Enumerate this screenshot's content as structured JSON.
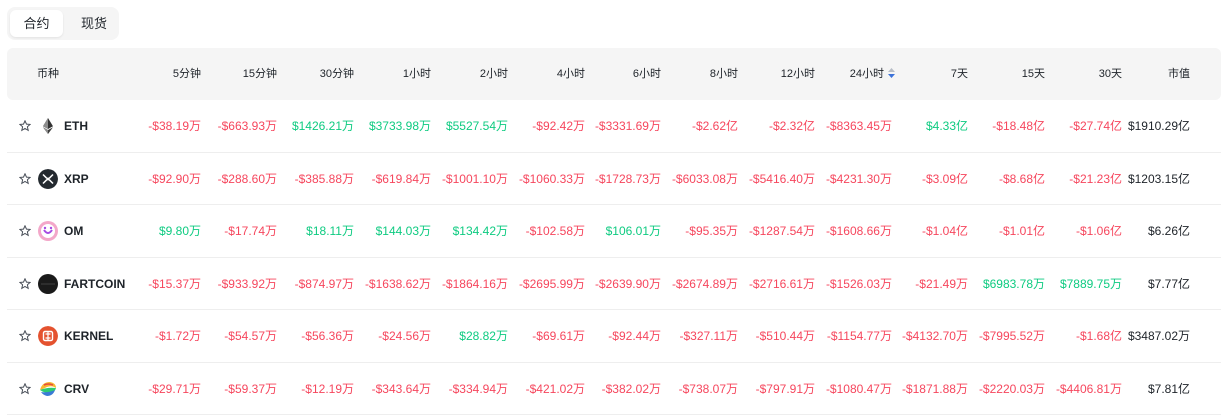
{
  "tabs": [
    {
      "label": "合约",
      "active": true
    },
    {
      "label": "现货",
      "active": false
    }
  ],
  "colors": {
    "positive": "#0ecb81",
    "negative": "#f6465d",
    "sort_active": "#3c72d9"
  },
  "headers": [
    "币种",
    "5分钟",
    "15分钟",
    "30分钟",
    "1小时",
    "2小时",
    "4小时",
    "6小时",
    "8小时",
    "12小时",
    "24小时",
    "7天",
    "15天",
    "30天",
    "市值"
  ],
  "sorted_column": "24小时",
  "rows": [
    {
      "symbol": "ETH",
      "icon": "eth-icon",
      "values": [
        "-$38.19万",
        "-$663.93万",
        "$1426.21万",
        "$3733.98万",
        "$5527.54万",
        "-$92.42万",
        "-$3331.69万",
        "-$2.62亿",
        "-$2.32亿",
        "-$8363.45万",
        "$4.33亿",
        "-$18.48亿",
        "-$27.74亿"
      ],
      "market_cap": "$1910.29亿"
    },
    {
      "symbol": "XRP",
      "icon": "xrp-icon",
      "values": [
        "-$92.90万",
        "-$288.60万",
        "-$385.88万",
        "-$619.84万",
        "-$1001.10万",
        "-$1060.33万",
        "-$1728.73万",
        "-$6033.08万",
        "-$5416.40万",
        "-$4231.30万",
        "-$3.09亿",
        "-$8.68亿",
        "-$21.23亿"
      ],
      "market_cap": "$1203.15亿"
    },
    {
      "symbol": "OM",
      "icon": "om-icon",
      "values": [
        "$9.80万",
        "-$17.74万",
        "$18.11万",
        "$144.03万",
        "$134.42万",
        "-$102.58万",
        "$106.01万",
        "-$95.35万",
        "-$1287.54万",
        "-$1608.66万",
        "-$1.04亿",
        "-$1.01亿",
        "-$1.06亿"
      ],
      "market_cap": "$6.26亿"
    },
    {
      "symbol": "FARTCOIN",
      "icon": "fartcoin-icon",
      "values": [
        "-$15.37万",
        "-$933.92万",
        "-$874.97万",
        "-$1638.62万",
        "-$1864.16万",
        "-$2695.99万",
        "-$2639.90万",
        "-$2674.89万",
        "-$2716.61万",
        "-$1526.03万",
        "-$21.49万",
        "$6983.78万",
        "$7889.75万"
      ],
      "market_cap": "$7.77亿"
    },
    {
      "symbol": "KERNEL",
      "icon": "kernel-icon",
      "values": [
        "-$1.72万",
        "-$54.57万",
        "-$56.36万",
        "-$24.56万",
        "$28.82万",
        "-$69.61万",
        "-$92.44万",
        "-$327.11万",
        "-$510.44万",
        "-$1154.77万",
        "-$4132.70万",
        "-$7995.52万",
        "-$1.68亿"
      ],
      "market_cap": "$3487.02万"
    },
    {
      "symbol": "CRV",
      "icon": "crv-icon",
      "values": [
        "-$29.71万",
        "-$59.37万",
        "-$12.19万",
        "-$343.64万",
        "-$334.94万",
        "-$421.02万",
        "-$382.02万",
        "-$738.07万",
        "-$797.91万",
        "-$1080.47万",
        "-$1871.88万",
        "-$2220.03万",
        "-$4406.81万"
      ],
      "market_cap": "$7.81亿"
    }
  ]
}
